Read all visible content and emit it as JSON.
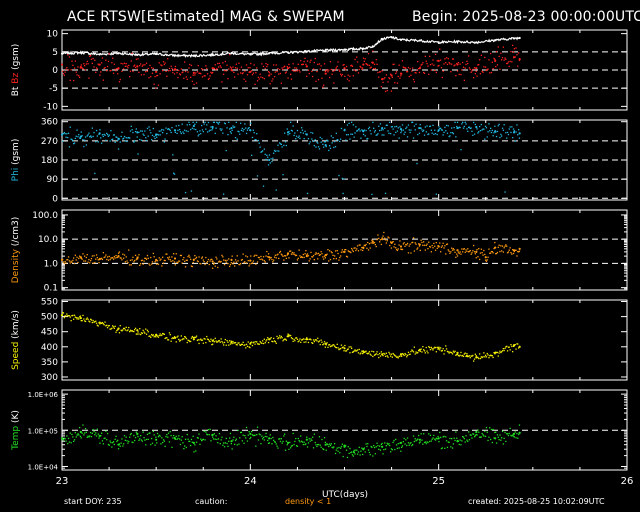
{
  "header": {
    "title": "ACE RTSW[Estimated] MAG & SWEPAM",
    "begin": "Begin: 2025-08-23 00:00:00UTC"
  },
  "footer": {
    "start_doy": "start DOY: 235",
    "caution": "caution:",
    "density_note": "density < 1",
    "created": "created: 2025-08-25 10:02:09UTC"
  },
  "colors": {
    "bt": "#ffffff",
    "bz": "#ff2020",
    "phi": "#22b8e0",
    "density": "#ff9a10",
    "speed": "#f4f000",
    "temp": "#22e022",
    "axes": "#ffffff",
    "note": "#ff9a10"
  },
  "chart_data": [
    {
      "type": "line",
      "panel": "mag",
      "ylabel_parts": [
        "Bt",
        "Bz",
        "(gsm)"
      ],
      "yticks": [
        "10",
        "5",
        "0",
        "-5",
        "-10"
      ],
      "ylim": [
        -11,
        11
      ],
      "reference_lines": [
        5,
        0,
        -5
      ],
      "x": [
        23.0,
        23.1,
        23.2,
        23.3,
        23.4,
        23.5,
        23.6,
        23.7,
        23.8,
        23.9,
        24.0,
        24.1,
        24.2,
        24.3,
        24.4,
        24.5,
        24.6,
        24.65,
        24.7,
        24.75,
        24.8,
        24.9,
        25.0,
        25.1,
        25.2,
        25.3,
        25.4,
        25.43
      ],
      "series": [
        {
          "name": "Bt",
          "values": [
            4.5,
            4.8,
            4.3,
            4.6,
            4.2,
            4.4,
            4.0,
            3.9,
            4.2,
            4.6,
            4.3,
            4.6,
            4.8,
            5.1,
            5.4,
            5.6,
            5.9,
            6.5,
            8.5,
            9.0,
            8.3,
            8.1,
            7.6,
            7.8,
            7.6,
            8.2,
            8.7,
            8.8
          ]
        },
        {
          "name": "Bz",
          "values": [
            1.5,
            0.8,
            1.5,
            0.5,
            1.0,
            -0.5,
            0.2,
            -0.8,
            0.5,
            0.0,
            -0.5,
            -1.5,
            0.5,
            1.0,
            -1.0,
            0.5,
            1.5,
            2.0,
            -2.5,
            -1.5,
            -1.0,
            0.5,
            2.5,
            1.5,
            0.5,
            2.5,
            3.5,
            3.0
          ]
        }
      ]
    },
    {
      "type": "scatter",
      "panel": "phi",
      "ylabel": "Phi (gsm)",
      "yticks": [
        "360",
        "270",
        "180",
        "90",
        "0"
      ],
      "ylim": [
        -8,
        368
      ],
      "reference_lines": [
        270,
        180,
        90,
        0
      ],
      "x": [
        23.0,
        23.1,
        23.2,
        23.3,
        23.4,
        23.5,
        23.6,
        23.7,
        23.8,
        23.9,
        24.0,
        24.1,
        24.2,
        24.3,
        24.4,
        24.5,
        24.6,
        24.7,
        24.8,
        24.9,
        25.0,
        25.1,
        25.2,
        25.3,
        25.4,
        25.43
      ],
      "series": [
        {
          "name": "Phi",
          "values": [
            300,
            290,
            305,
            280,
            310,
            300,
            320,
            340,
            335,
            330,
            320,
            180,
            310,
            300,
            250,
            320,
            315,
            330,
            325,
            330,
            320,
            330,
            335,
            315,
            310,
            305
          ]
        }
      ]
    },
    {
      "type": "scatter",
      "panel": "density",
      "ylabel": "Density (/cm3)",
      "yscale": "log",
      "yticks": [
        "100.0",
        "10.0",
        "1.0",
        "0.1"
      ],
      "ylim": [
        0.08,
        160
      ],
      "reference_lines": [
        10,
        1
      ],
      "x": [
        23.0,
        23.1,
        23.2,
        23.3,
        23.4,
        23.5,
        23.6,
        23.7,
        23.8,
        23.9,
        24.0,
        24.1,
        24.2,
        24.3,
        24.4,
        24.5,
        24.6,
        24.65,
        24.7,
        24.75,
        24.8,
        24.9,
        25.0,
        25.1,
        25.2,
        25.25,
        25.3,
        25.4,
        25.43
      ],
      "series": [
        {
          "name": "Density",
          "values": [
            1.4,
            1.8,
            1.5,
            2.0,
            1.6,
            1.4,
            1.6,
            1.4,
            1.2,
            1.4,
            1.3,
            1.8,
            2.5,
            2.0,
            2.2,
            3.0,
            4.5,
            8.0,
            10.0,
            7.0,
            5.0,
            6.0,
            5.0,
            3.5,
            3.0,
            1.8,
            4.5,
            3.5,
            4.0
          ]
        }
      ]
    },
    {
      "type": "scatter",
      "panel": "speed",
      "ylabel": "Speed (km/s)",
      "yticks": [
        "550",
        "500",
        "450",
        "400",
        "350",
        "300"
      ],
      "ylim": [
        290,
        555
      ],
      "x": [
        23.0,
        23.1,
        23.2,
        23.3,
        23.4,
        23.5,
        23.6,
        23.7,
        23.8,
        23.9,
        24.0,
        24.1,
        24.2,
        24.3,
        24.4,
        24.5,
        24.6,
        24.7,
        24.8,
        24.9,
        25.0,
        25.1,
        25.15,
        25.2,
        25.3,
        25.4,
        25.43
      ],
      "series": [
        {
          "name": "Speed",
          "values": [
            505,
            495,
            480,
            460,
            455,
            440,
            430,
            425,
            420,
            415,
            410,
            425,
            435,
            425,
            410,
            395,
            385,
            375,
            375,
            390,
            395,
            380,
            370,
            365,
            380,
            405,
            400
          ]
        }
      ]
    },
    {
      "type": "scatter",
      "panel": "temp",
      "ylabel": "Temp (K)",
      "yscale": "log",
      "yticks": [
        "1.0E+06",
        "1.0E+05",
        "1.0E+04"
      ],
      "ylim": [
        8000,
        1300000
      ],
      "reference_lines": [
        100000
      ],
      "x": [
        23.0,
        23.1,
        23.2,
        23.3,
        23.4,
        23.5,
        23.6,
        23.7,
        23.8,
        23.9,
        24.0,
        24.1,
        24.2,
        24.3,
        24.4,
        24.5,
        24.55,
        24.6,
        24.7,
        24.8,
        24.9,
        25.0,
        25.1,
        25.2,
        25.3,
        25.4,
        25.43
      ],
      "series": [
        {
          "name": "Temp",
          "values": [
            60000,
            90000,
            70000,
            40000,
            80000,
            55000,
            60000,
            45000,
            75000,
            50000,
            80000,
            60000,
            45000,
            55000,
            40000,
            35000,
            25000,
            30000,
            35000,
            45000,
            55000,
            60000,
            50000,
            90000,
            60000,
            80000,
            85000
          ]
        }
      ]
    }
  ],
  "x_axis": {
    "label": "UTC(days)",
    "ticks": [
      "23",
      "24",
      "25",
      "26"
    ],
    "xlim": [
      23,
      26
    ]
  }
}
